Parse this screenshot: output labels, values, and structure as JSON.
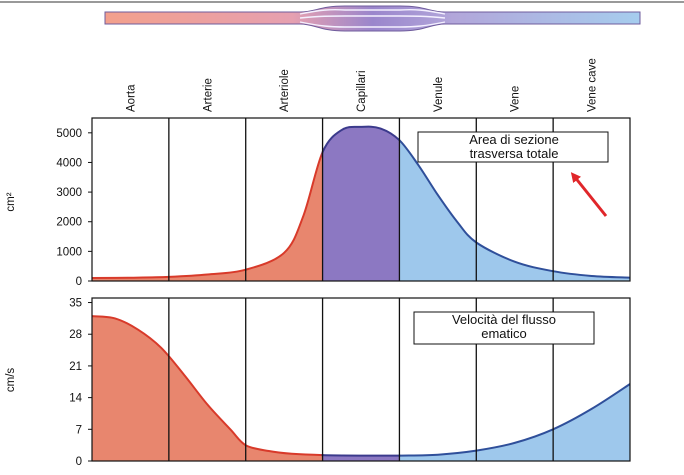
{
  "segments": [
    "Aorta",
    "Arterie",
    "Arteriole",
    "Capillari",
    "Venule",
    "Vene",
    "Vene cave"
  ],
  "colors": {
    "arterial_fill": "#e8866e",
    "arterial_line": "#d83a2a",
    "capillary_fill": "#8c78c2",
    "capillary_line": "#3b3a8c",
    "venous_fill": "#9ec8ec",
    "venous_line": "#2f4f9a",
    "arrow": "#e0262a",
    "grid": "#111111"
  },
  "vessel_diagram": {
    "icon": "blood-vessel-branching-schematic"
  },
  "chart_data": [
    {
      "type": "area",
      "title": "Area di sezione trasversa totale",
      "ylabel": "cm²",
      "ylim": [
        0,
        5500
      ],
      "yticks": [
        "5000",
        "4000",
        "3000",
        "2000",
        "1000",
        "0"
      ],
      "ytick_values": [
        5000,
        4000,
        3000,
        2000,
        1000,
        0
      ],
      "categories": [
        "Aorta",
        "Arterie",
        "Arteriole",
        "Capillari",
        "Venule",
        "Vene",
        "Vene cave"
      ],
      "x": [
        0,
        0.5,
        1,
        1.5,
        2,
        2.5,
        2.75,
        3,
        3.25,
        3.5,
        3.75,
        4,
        4.25,
        4.5,
        4.75,
        5,
        5.5,
        6,
        6.5,
        7
      ],
      "values": [
        100,
        110,
        140,
        220,
        380,
        950,
        2200,
        4350,
        5100,
        5200,
        5150,
        4750,
        3900,
        2900,
        2000,
        1300,
        650,
        330,
        170,
        110
      ],
      "annotation": "arrow pointing to the curve"
    },
    {
      "type": "area",
      "title": "Velocità del flusso ematico",
      "ylabel": "cm/s",
      "ylim": [
        0,
        36
      ],
      "yticks": [
        "35",
        "28",
        "21",
        "14",
        "7",
        "0"
      ],
      "ytick_values": [
        35,
        28,
        21,
        14,
        7,
        0
      ],
      "categories": [
        "Aorta",
        "Arterie",
        "Arteriole",
        "Capillari",
        "Venule",
        "Vene",
        "Vene cave"
      ],
      "x": [
        0,
        0.3,
        0.6,
        0.9,
        1.2,
        1.5,
        1.8,
        2,
        2.3,
        2.6,
        3,
        3.5,
        4,
        4.5,
        5,
        5.5,
        6,
        6.5,
        7
      ],
      "values": [
        32,
        31.5,
        29,
        25,
        19,
        12.5,
        7,
        3.5,
        2.2,
        1.6,
        1.3,
        1.2,
        1.2,
        1.4,
        2.3,
        4,
        7,
        11.5,
        17
      ]
    }
  ]
}
